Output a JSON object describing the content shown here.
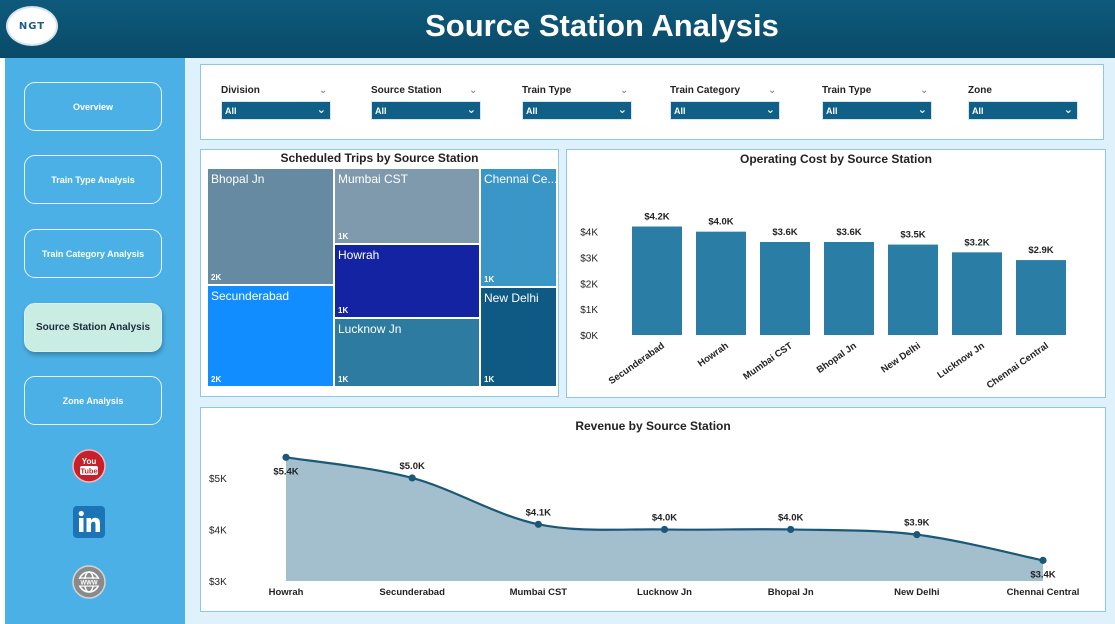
{
  "header": {
    "logo_text": "NGT",
    "title": "Source Station Analysis"
  },
  "sidebar": {
    "items": [
      {
        "label": "Overview",
        "active": false
      },
      {
        "label": "Train Type Analysis",
        "active": false
      },
      {
        "label": "Train Category Analysis",
        "active": false
      },
      {
        "label": "Source Station Analysis",
        "active": true
      },
      {
        "label": "Zone Analysis",
        "active": false
      }
    ],
    "social": [
      "youtube-icon",
      "linkedin-icon",
      "website-icon"
    ]
  },
  "filters": [
    {
      "label": "Division",
      "value": "All"
    },
    {
      "label": "Source Station",
      "value": "All"
    },
    {
      "label": "Train Type",
      "value": "All"
    },
    {
      "label": "Train Category",
      "value": "All"
    },
    {
      "label": "Train Type",
      "value": "All"
    },
    {
      "label": "Zone",
      "value": "All"
    }
  ],
  "colors": {
    "header": "#0b4f6f",
    "sidebar": "#4ab0e6",
    "bar": "#2a7da4",
    "area_line": "#1b5878",
    "area_fill": "#a3bfcd"
  },
  "chart_data": [
    {
      "type": "heatmap",
      "title": "Scheduled Trips by Source Station",
      "cells": [
        {
          "name": "Bhopal Jn",
          "value_label": "2K",
          "color": "#658aa1"
        },
        {
          "name": "Secunderabad",
          "value_label": "2K",
          "color": "#118dff"
        },
        {
          "name": "Mumbai CST",
          "value_label": "1K",
          "color": "#7f9aac"
        },
        {
          "name": "Howrah",
          "value_label": "1K",
          "color": "#1323a1"
        },
        {
          "name": "Lucknow Jn",
          "value_label": "1K",
          "color": "#2d7ba1"
        },
        {
          "name": "Chennai Ce...",
          "value_label": "1K",
          "color": "#3b96c8"
        },
        {
          "name": "New Delhi",
          "value_label": "1K",
          "color": "#0f5a84"
        }
      ]
    },
    {
      "type": "bar",
      "title": "Operating Cost by Source Station",
      "categories": [
        "Secunderabad",
        "Howrah",
        "Mumbai CST",
        "Bhopal Jn",
        "New Delhi",
        "Lucknow Jn",
        "Chennai Central"
      ],
      "values": [
        4.2,
        4.0,
        3.6,
        3.6,
        3.5,
        3.2,
        2.9
      ],
      "data_labels": [
        "$4.2K",
        "$4.0K",
        "$3.6K",
        "$3.6K",
        "$3.5K",
        "$3.2K",
        "$2.9K"
      ],
      "ylim": [
        0,
        4.8
      ],
      "yticks": [
        0,
        1,
        2,
        3,
        4
      ],
      "ytick_labels": [
        "$0K",
        "$1K",
        "$2K",
        "$3K",
        "$4K"
      ]
    },
    {
      "type": "area",
      "title": "Revenue by Source Station",
      "categories": [
        "Howrah",
        "Secunderabad",
        "Mumbai CST",
        "Lucknow Jn",
        "Bhopal Jn",
        "New Delhi",
        "Chennai Central"
      ],
      "values": [
        5.4,
        5.0,
        4.1,
        4.0,
        4.0,
        3.9,
        3.4
      ],
      "data_labels": [
        "$5.4K",
        "$5.0K",
        "$4.1K",
        "$4.0K",
        "$4.0K",
        "$3.9K",
        "$3.4K"
      ],
      "ylim": [
        3,
        5.6
      ],
      "yticks": [
        3,
        4,
        5
      ],
      "ytick_labels": [
        "$3K",
        "$4K",
        "$5K"
      ]
    }
  ]
}
